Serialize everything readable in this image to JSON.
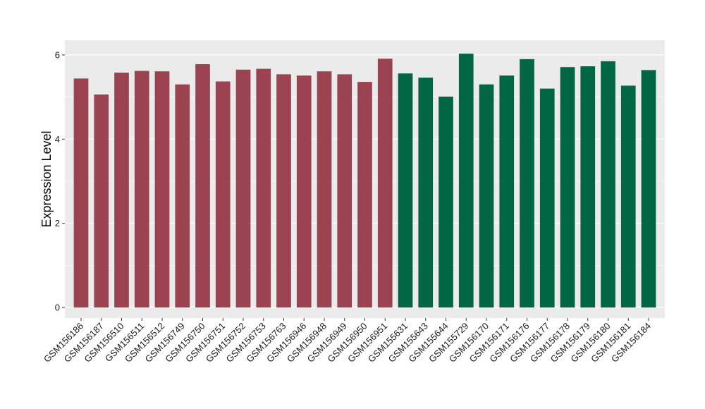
{
  "chart_data": {
    "type": "bar",
    "title": "",
    "xlabel": "",
    "ylabel": "Expression Level",
    "ylim": [
      -0.25,
      6.35
    ],
    "yticks": [
      0,
      2,
      4,
      6
    ],
    "grid": true,
    "legend": "none",
    "categories": [
      "GSM156186",
      "GSM156187",
      "GSM156510",
      "GSM156511",
      "GSM156512",
      "GSM156749",
      "GSM156750",
      "GSM156751",
      "GSM156752",
      "GSM156753",
      "GSM156763",
      "GSM156946",
      "GSM156948",
      "GSM156949",
      "GSM156950",
      "GSM156951",
      "GSM155631",
      "GSM155643",
      "GSM155644",
      "GSM155729",
      "GSM156170",
      "GSM156171",
      "GSM156176",
      "GSM156177",
      "GSM156178",
      "GSM156179",
      "GSM156180",
      "GSM156181",
      "GSM156184"
    ],
    "values": [
      5.44,
      5.06,
      5.58,
      5.62,
      5.61,
      5.3,
      5.78,
      5.37,
      5.65,
      5.67,
      5.54,
      5.51,
      5.61,
      5.54,
      5.36,
      5.91,
      5.56,
      5.46,
      5.01,
      6.03,
      5.3,
      5.51,
      5.9,
      5.2,
      5.71,
      5.73,
      5.85,
      5.27,
      5.64
    ],
    "groups": [
      0,
      0,
      0,
      0,
      0,
      0,
      0,
      0,
      0,
      0,
      0,
      0,
      0,
      0,
      0,
      0,
      1,
      1,
      1,
      1,
      1,
      1,
      1,
      1,
      1,
      1,
      1,
      1,
      1
    ],
    "group_colors": [
      "#9b4350",
      "#006644"
    ],
    "panel_color": "#ebebeb",
    "grid_color": "#ffffff"
  }
}
